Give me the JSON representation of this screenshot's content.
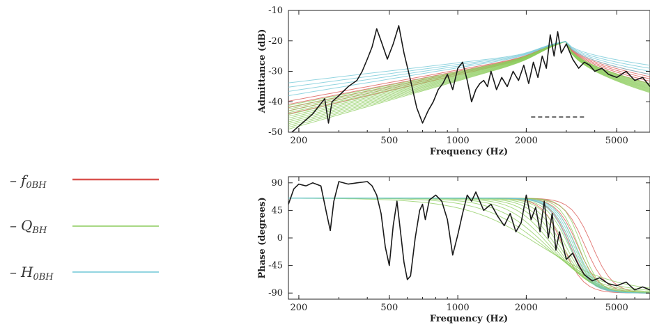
{
  "legend": {
    "items": [
      {
        "label": "f",
        "sub": "0BH",
        "color": "#d9534f"
      },
      {
        "label": "Q",
        "sub": "BH",
        "color": "#8ccc5c"
      },
      {
        "label": "H",
        "sub": "0BH",
        "color": "#6fc7d6"
      }
    ]
  },
  "chart_data": [
    {
      "type": "line",
      "xscale": "log",
      "xlim": [
        180,
        7000
      ],
      "ylim": [
        -50,
        -10
      ],
      "xlabel": "Frequency (Hz)",
      "ylabel": "Admittance (dB)",
      "xticks": [
        200,
        500,
        1000,
        2000,
        5000
      ],
      "xtick_labels": [
        "200",
        "500",
        "1000",
        "2000",
        "5000"
      ],
      "yticks": [
        -50,
        -40,
        -30,
        -20,
        -10
      ],
      "ytick_labels": [
        "-50",
        "-40",
        "-30",
        "-20",
        "-10"
      ],
      "grid": false,
      "measured": {
        "color": "#1a1a1a",
        "x": [
          180,
          200,
          230,
          260,
          270,
          280,
          300,
          330,
          360,
          380,
          400,
          420,
          440,
          460,
          490,
          520,
          550,
          580,
          620,
          660,
          700,
          740,
          780,
          820,
          860,
          900,
          950,
          1000,
          1050,
          1100,
          1150,
          1200,
          1250,
          1300,
          1350,
          1400,
          1480,
          1560,
          1650,
          1750,
          1850,
          1950,
          2050,
          2150,
          2250,
          2350,
          2450,
          2550,
          2650,
          2750,
          2850,
          3000,
          3200,
          3400,
          3600,
          3800,
          4000,
          4300,
          4600,
          5000,
          5500,
          6000,
          6500,
          7000
        ],
        "y": [
          -51,
          -48,
          -44,
          -39,
          -47,
          -40,
          -38,
          -35,
          -33,
          -30,
          -26,
          -22,
          -16,
          -20,
          -26,
          -21,
          -15,
          -24,
          -33,
          -42,
          -47,
          -43,
          -40,
          -36,
          -34,
          -31,
          -36,
          -29,
          -27,
          -33,
          -40,
          -36,
          -34,
          -33,
          -35,
          -30,
          -36,
          -32,
          -35,
          -30,
          -33,
          -28,
          -34,
          -27,
          -32,
          -25,
          -29,
          -18,
          -25,
          -17,
          -24,
          -21,
          -26,
          -29,
          -27,
          -28,
          -30,
          -29,
          -31,
          -32,
          -30,
          -33,
          -32,
          -35
        ]
      },
      "model_bands": [
        {
          "name": "f0BH",
          "color": "#d9534f",
          "count": 5,
          "peak_x": 3000,
          "peak_y": -20,
          "start_y": -44,
          "end_y": -31
        },
        {
          "name": "QBH",
          "color": "#8ccc5c",
          "count": 14,
          "peak_x": 3000,
          "peak_y": -20,
          "start_y": -49,
          "end_y": -34
        },
        {
          "name": "H0BH",
          "color": "#6fc7d6",
          "count": 4,
          "peak_x": 3000,
          "peak_y": -20,
          "start_y": -38,
          "end_y": -28
        }
      ],
      "dashed_segment": {
        "x": [
          2100,
          3600
        ],
        "y": -45,
        "color": "#333333"
      }
    },
    {
      "type": "line",
      "xscale": "log",
      "xlim": [
        180,
        7000
      ],
      "ylim": [
        -100,
        100
      ],
      "xlabel": "Frequency (Hz)",
      "ylabel": "Phase (degrees)",
      "xticks": [
        200,
        500,
        1000,
        2000,
        5000
      ],
      "xtick_labels": [
        "200",
        "500",
        "1000",
        "2000",
        "5000"
      ],
      "yticks": [
        -90,
        -45,
        0,
        45,
        90
      ],
      "ytick_labels": [
        "-90",
        "-45",
        "0",
        "45",
        "90"
      ],
      "grid": false,
      "measured": {
        "color": "#1a1a1a",
        "x": [
          180,
          190,
          200,
          215,
          230,
          250,
          265,
          275,
          285,
          300,
          330,
          360,
          400,
          420,
          440,
          460,
          480,
          500,
          520,
          540,
          560,
          580,
          600,
          620,
          650,
          680,
          700,
          720,
          750,
          800,
          850,
          900,
          950,
          1000,
          1050,
          1100,
          1150,
          1200,
          1300,
          1400,
          1500,
          1600,
          1700,
          1800,
          1900,
          2000,
          2100,
          2200,
          2300,
          2400,
          2500,
          2600,
          2700,
          2800,
          3000,
          3200,
          3400,
          3600,
          3900,
          4200,
          4600,
          5000,
          5500,
          6000,
          6500,
          7000
        ],
        "y": [
          55,
          80,
          88,
          85,
          90,
          85,
          40,
          12,
          60,
          92,
          88,
          90,
          92,
          85,
          70,
          40,
          -15,
          -45,
          20,
          60,
          10,
          -40,
          -68,
          -62,
          0,
          45,
          55,
          30,
          62,
          70,
          60,
          30,
          -28,
          5,
          40,
          70,
          60,
          75,
          45,
          55,
          35,
          20,
          40,
          10,
          25,
          70,
          30,
          50,
          10,
          60,
          0,
          40,
          -20,
          10,
          -35,
          -25,
          -45,
          -60,
          -70,
          -65,
          -75,
          -78,
          -72,
          -85,
          -80,
          -85
        ]
      },
      "model_bands": [
        {
          "name": "f0BH",
          "color": "#d9534f",
          "count": 5,
          "start_y": 65,
          "end_y": -90,
          "transition_x": [
            2900,
            3900
          ]
        },
        {
          "name": "QBH",
          "color": "#8ccc5c",
          "count": 14,
          "start_y": 65,
          "end_y": -90,
          "transition_x": [
            2300,
            3500
          ]
        },
        {
          "name": "H0BH",
          "color": "#6fc7d6",
          "count": 4,
          "start_y": 65,
          "end_y": -90,
          "transition_x": [
            3100,
            3300
          ]
        }
      ]
    }
  ]
}
